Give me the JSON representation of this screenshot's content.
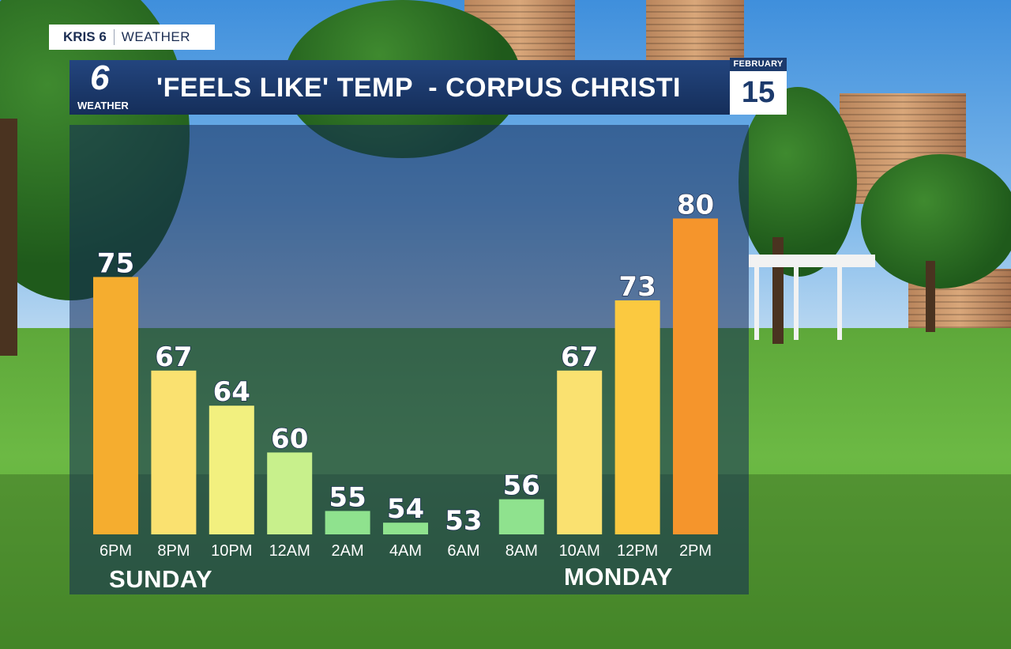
{
  "branding": {
    "station": "KRIS 6",
    "section": "WEATHER",
    "logo_number": "6",
    "logo_label": "WEATHER"
  },
  "header": {
    "title": "'FEELS LIKE' TEMP  - CORPUS CHRISTI"
  },
  "date": {
    "month": "FEBRUARY",
    "day": "15"
  },
  "day_labels": {
    "first": "SUNDAY",
    "second": "MONDAY"
  },
  "chart_data": {
    "type": "bar",
    "title": "'FEELS LIKE' TEMP  - CORPUS CHRISTI",
    "categories": [
      "6PM",
      "8PM",
      "10PM",
      "12AM",
      "2AM",
      "4AM",
      "6AM",
      "8AM",
      "10AM",
      "12PM",
      "2PM"
    ],
    "values": [
      75,
      67,
      64,
      60,
      55,
      54,
      53,
      56,
      67,
      73,
      80
    ],
    "colors": [
      "#f5ad2f",
      "#fae170",
      "#f2f07f",
      "#c8f08c",
      "#8fe28e",
      "#8fe28e",
      "#8fe28e",
      "#8fe28e",
      "#fae170",
      "#fbc940",
      "#f5952c"
    ],
    "baseline": 53,
    "ylim": [
      53,
      80
    ],
    "xlabel": "",
    "ylabel": "",
    "grid": false,
    "data_labels": true
  }
}
